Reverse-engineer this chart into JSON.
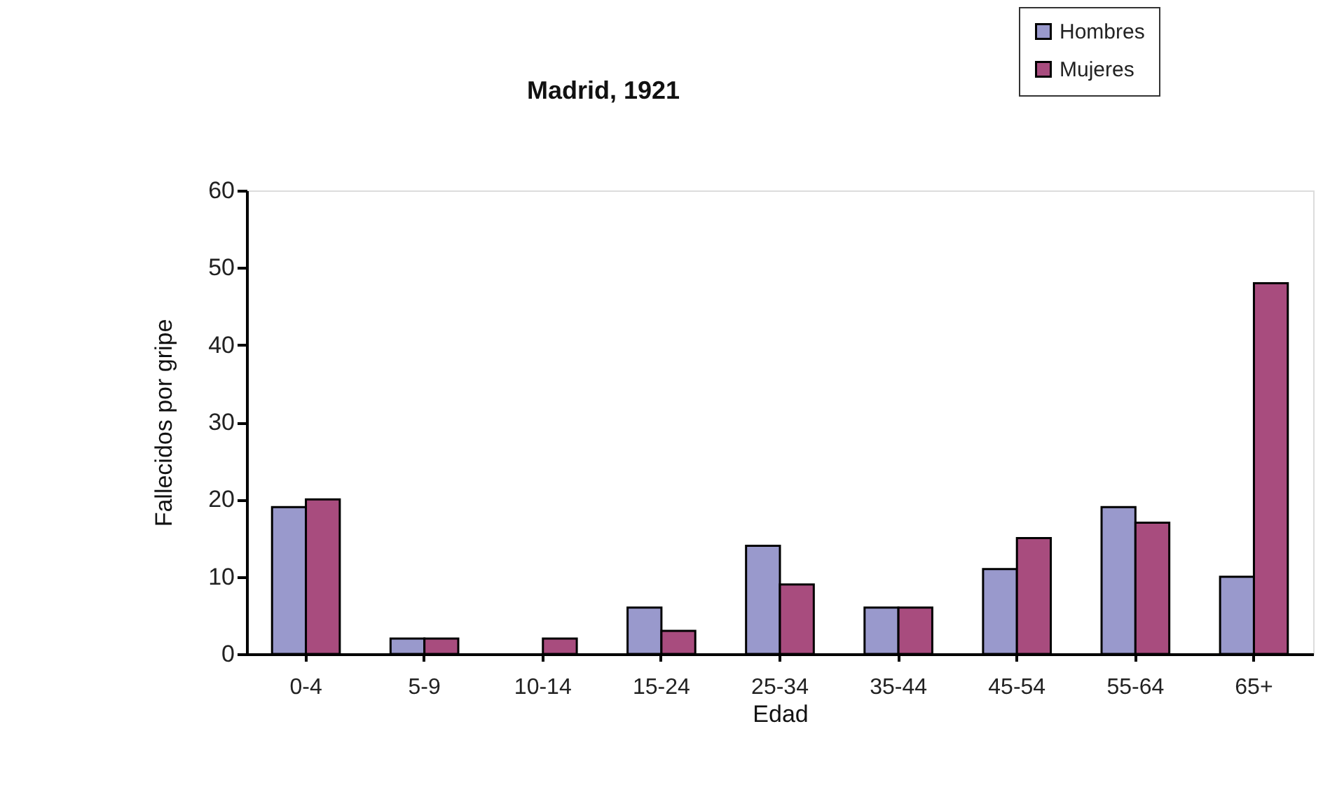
{
  "chart_data": {
    "type": "bar",
    "title": "Madrid, 1921",
    "xlabel": "Edad",
    "ylabel": "Fallecidos por gripe",
    "categories": [
      "0-4",
      "5-9",
      "10-14",
      "15-24",
      "25-34",
      "35-44",
      "45-54",
      "55-64",
      "65+"
    ],
    "series": [
      {
        "name": "Hombres",
        "color": "#9999cc",
        "values": [
          19,
          2,
          0,
          6,
          14,
          6,
          11,
          19,
          10
        ]
      },
      {
        "name": "Mujeres",
        "color": "#a84c7e",
        "values": [
          20,
          2,
          2,
          3,
          9,
          6,
          15,
          17,
          48
        ]
      }
    ],
    "ylim": [
      0,
      60
    ],
    "yticks": [
      0,
      10,
      20,
      30,
      40,
      50,
      60
    ],
    "grid": false,
    "legend": "top right"
  }
}
